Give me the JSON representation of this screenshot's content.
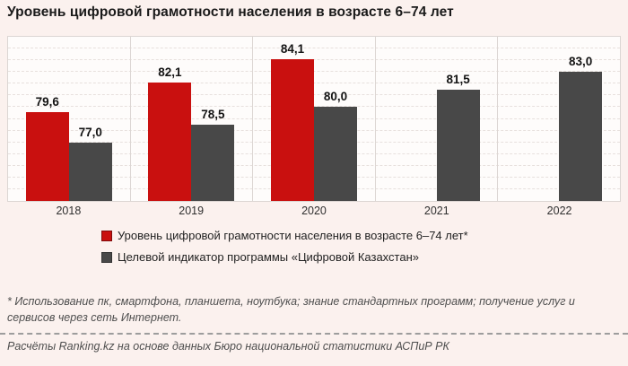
{
  "title": "Уровень цифровой грамотности населения в возрасте 6–74 лет",
  "footnote": "* Использование пк, смартфона, планшета, ноутбука; знание стандартных программ; получение услуг и сервисов через сеть Интернет.",
  "credit": "Расчёты Ranking.kz на основе данных Бюро национальной статистики АСПиР РК",
  "colors": {
    "page_background": "#FBF1EE",
    "plot_background": "#FEFCFB",
    "gridline": "#E7E0DD",
    "separator": "#DCD6D3",
    "red_series": "#C9100F",
    "gray_series": "#484848"
  },
  "chart_data": {
    "type": "bar",
    "title": "Уровень цифровой грамотности населения в возрасте 6–74 лет",
    "categories": [
      "2018",
      "2019",
      "2020",
      "2021",
      "2022"
    ],
    "series": [
      {
        "name": "Уровень цифровой грамотности населения в возрасте 6–74 лет*",
        "color": "#C9100F",
        "values": [
          79.6,
          82.1,
          84.1,
          null,
          null
        ],
        "labels": [
          "79,6",
          "82,1",
          "84,1",
          "",
          ""
        ]
      },
      {
        "name": "Целевой индикатор программы «Цифровой Казахстан»",
        "color": "#484848",
        "values": [
          77.0,
          78.5,
          80.0,
          81.5,
          83.0
        ],
        "labels": [
          "77,0",
          "78,5",
          "80,0",
          "81,5",
          "83,0"
        ]
      }
    ],
    "xlabel": "",
    "ylabel": "",
    "ylim": [
      72,
      86
    ],
    "grid": true,
    "grid_style": "dashed-horizontal",
    "legend_position": "bottom-left"
  }
}
